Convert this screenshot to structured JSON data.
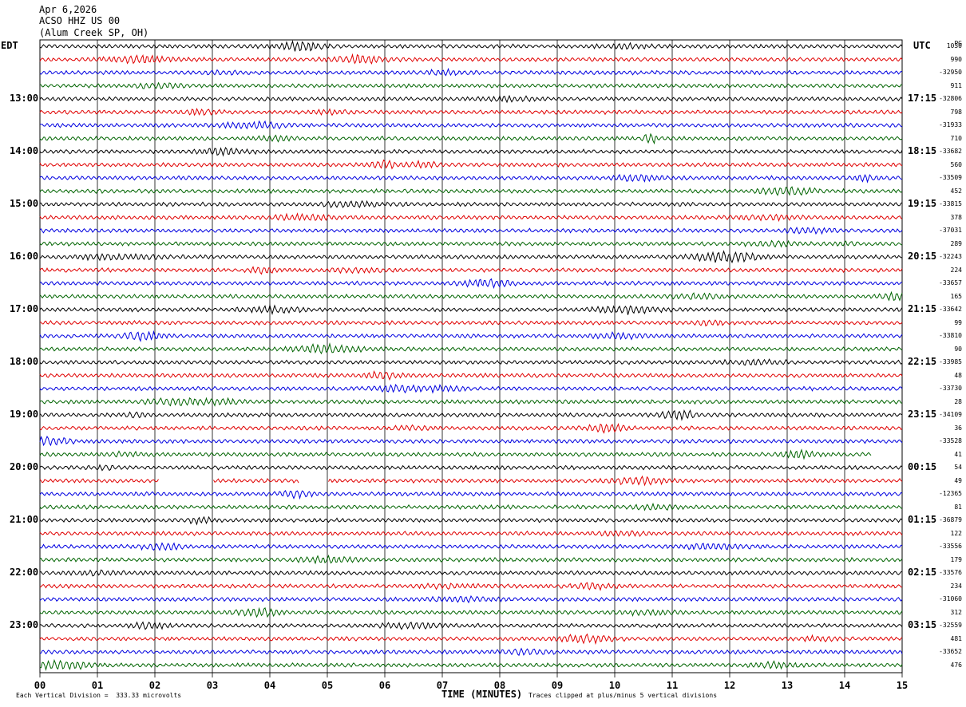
{
  "header": {
    "date": "Apr 6,2026",
    "station": "ACSO HHZ US 00",
    "location": "(Alum Creek SP, OH)"
  },
  "left_tz": "EDT",
  "right_tz": "UTC",
  "corner_label": "PG",
  "footer": {
    "division": "Each Vertical Division =  333.33 microvolts",
    "clip_note": "Traces clipped at plus/minus 5 vertical divisions"
  },
  "colors": [
    "#000000",
    "#e00000",
    "#0000e0",
    "#006400"
  ],
  "chart_data": {
    "type": "line",
    "xlabel": "TIME (MINUTES)",
    "x_ticks": [
      "00",
      "01",
      "02",
      "03",
      "04",
      "05",
      "06",
      "07",
      "08",
      "09",
      "10",
      "11",
      "12",
      "13",
      "14",
      "15"
    ],
    "xlim": [
      0,
      15
    ],
    "grid": true,
    "left_hour_labels": [
      "13:00",
      "14:00",
      "15:00",
      "16:00",
      "17:00",
      "18:00",
      "19:00",
      "20:00",
      "21:00",
      "22:00",
      "23:00"
    ],
    "right_hour_labels": [
      "17:15",
      "18:15",
      "19:15",
      "20:15",
      "21:15",
      "22:15",
      "23:15",
      "00:15",
      "01:15",
      "02:15",
      "03:15"
    ],
    "trace_values": [
      "1030",
      "990",
      "-32950",
      "911",
      "-32806",
      "798",
      "-31933",
      "710",
      "-33682",
      "560",
      "-33509",
      "452",
      "-33815",
      "378",
      "-37031",
      "289",
      "-32243",
      "224",
      "-33657",
      "165",
      "-33642",
      "99",
      "-33810",
      "90",
      "-33985",
      "48",
      "-33730",
      "28",
      "-34109",
      "36",
      "-33528",
      "41",
      "54",
      "49",
      "-12365",
      "81",
      "-36879",
      "122",
      "-33556",
      "179",
      "-33576",
      "234",
      "-31060",
      "312",
      "-32559",
      "481",
      "-33652",
      "476"
    ]
  }
}
